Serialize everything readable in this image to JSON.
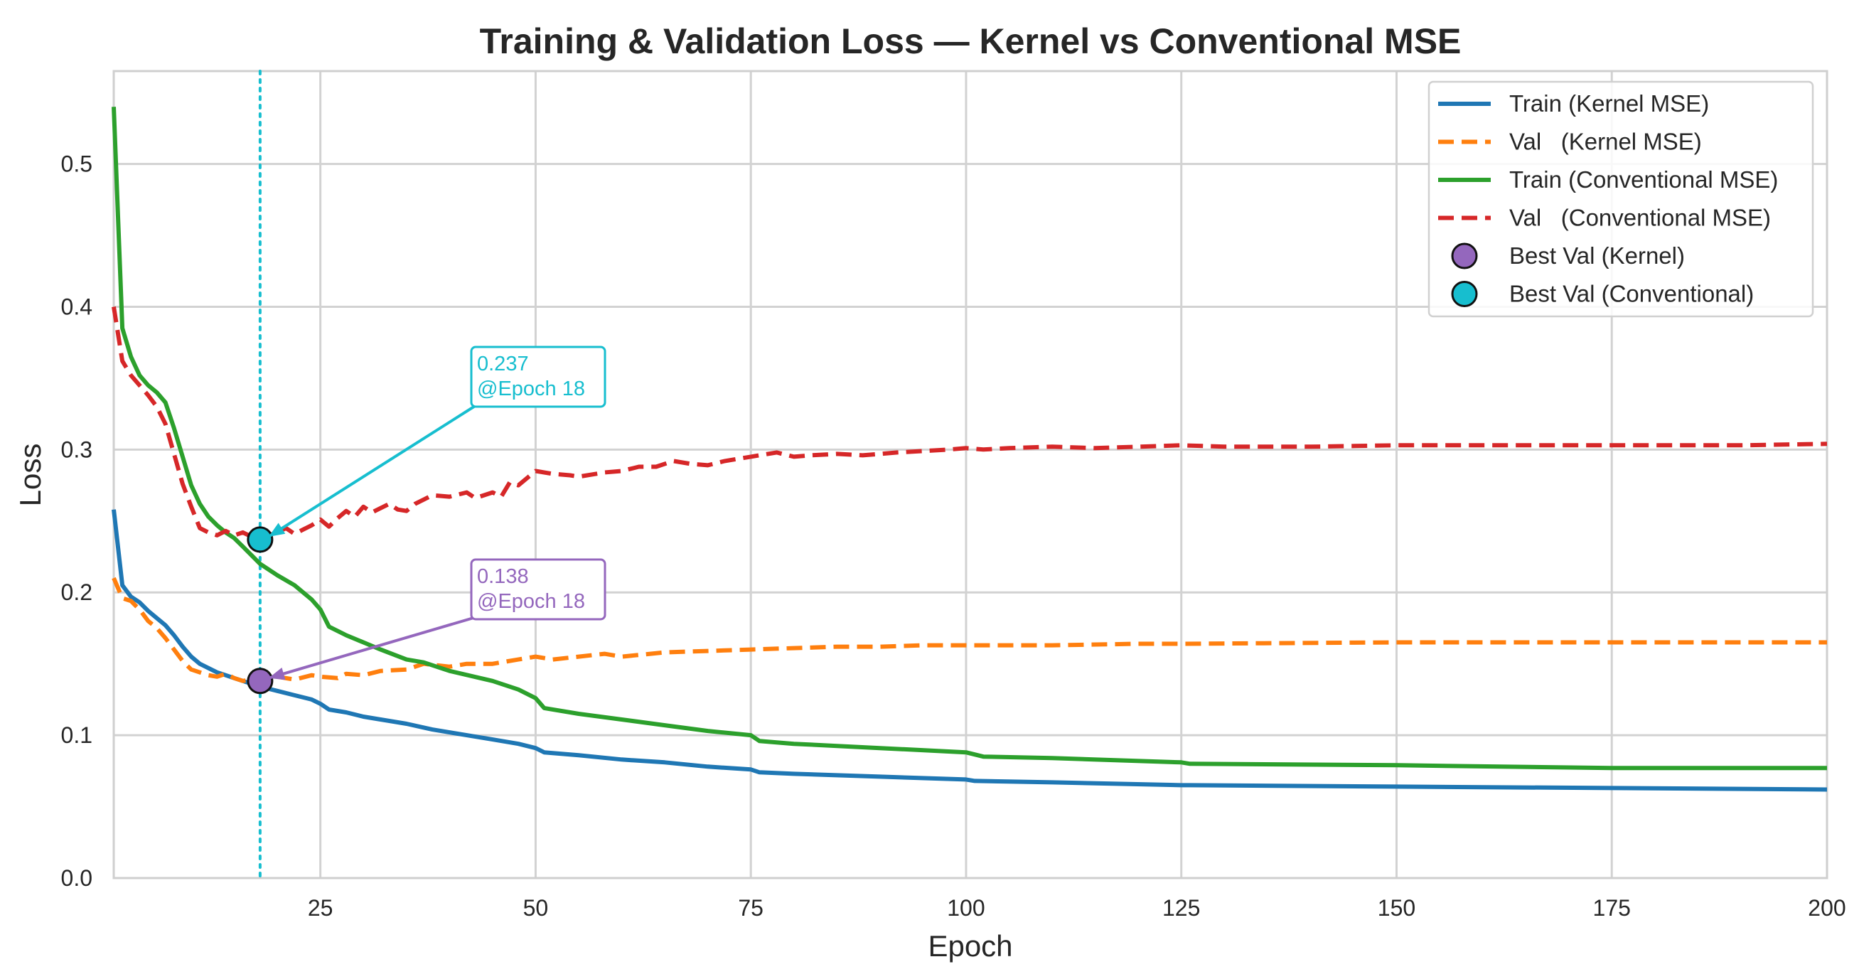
{
  "chart_data": {
    "type": "line",
    "title": "Training & Validation Loss — Kernel vs Conventional MSE",
    "xlabel": "Epoch",
    "ylabel": "Loss",
    "xlim": [
      1,
      200
    ],
    "ylim": [
      0,
      0.565
    ],
    "x_ticks": [
      25,
      50,
      75,
      100,
      125,
      150,
      175,
      200
    ],
    "y_ticks": [
      0.0,
      0.1,
      0.2,
      0.3,
      0.4,
      0.5
    ],
    "x_tick_labels": [
      "25",
      "50",
      "75",
      "100",
      "125",
      "150",
      "175",
      "200"
    ],
    "y_tick_labels": [
      "0.0",
      "0.1",
      "0.2",
      "0.3",
      "0.4",
      "0.5"
    ],
    "grid": true,
    "legend_position": "top-right",
    "series": [
      {
        "name": "Train (Kernel MSE)",
        "color": "#1f77b4",
        "style": "solid",
        "points": [
          [
            1,
            0.258
          ],
          [
            2,
            0.205
          ],
          [
            3,
            0.197
          ],
          [
            4,
            0.193
          ],
          [
            5,
            0.187
          ],
          [
            6,
            0.182
          ],
          [
            7,
            0.177
          ],
          [
            8,
            0.17
          ],
          [
            9,
            0.162
          ],
          [
            10,
            0.155
          ],
          [
            11,
            0.15
          ],
          [
            12,
            0.147
          ],
          [
            13,
            0.144
          ],
          [
            14,
            0.142
          ],
          [
            15,
            0.14
          ],
          [
            16,
            0.138
          ],
          [
            17,
            0.136
          ],
          [
            18,
            0.134
          ],
          [
            20,
            0.131
          ],
          [
            22,
            0.128
          ],
          [
            24,
            0.125
          ],
          [
            25,
            0.122
          ],
          [
            26,
            0.118
          ],
          [
            28,
            0.116
          ],
          [
            30,
            0.113
          ],
          [
            32,
            0.111
          ],
          [
            35,
            0.108
          ],
          [
            38,
            0.104
          ],
          [
            40,
            0.102
          ],
          [
            42,
            0.1
          ],
          [
            45,
            0.097
          ],
          [
            48,
            0.094
          ],
          [
            50,
            0.091
          ],
          [
            51,
            0.088
          ],
          [
            55,
            0.086
          ],
          [
            60,
            0.083
          ],
          [
            65,
            0.081
          ],
          [
            70,
            0.078
          ],
          [
            75,
            0.076
          ],
          [
            76,
            0.074
          ],
          [
            80,
            0.073
          ],
          [
            90,
            0.071
          ],
          [
            100,
            0.069
          ],
          [
            101,
            0.068
          ],
          [
            110,
            0.067
          ],
          [
            125,
            0.065
          ],
          [
            126,
            0.065
          ],
          [
            150,
            0.064
          ],
          [
            175,
            0.063
          ],
          [
            200,
            0.062
          ]
        ]
      },
      {
        "name": "Val   (Kernel MSE)",
        "color": "#ff7f0e",
        "style": "dashed",
        "points": [
          [
            1,
            0.21
          ],
          [
            2,
            0.196
          ],
          [
            3,
            0.194
          ],
          [
            4,
            0.188
          ],
          [
            5,
            0.18
          ],
          [
            6,
            0.175
          ],
          [
            7,
            0.168
          ],
          [
            8,
            0.16
          ],
          [
            9,
            0.152
          ],
          [
            10,
            0.146
          ],
          [
            11,
            0.144
          ],
          [
            12,
            0.142
          ],
          [
            13,
            0.141
          ],
          [
            14,
            0.143
          ],
          [
            15,
            0.14
          ],
          [
            16,
            0.138
          ],
          [
            17,
            0.139
          ],
          [
            18,
            0.138
          ],
          [
            19,
            0.14
          ],
          [
            20,
            0.141
          ],
          [
            22,
            0.139
          ],
          [
            24,
            0.142
          ],
          [
            25,
            0.141
          ],
          [
            27,
            0.14
          ],
          [
            28,
            0.143
          ],
          [
            30,
            0.142
          ],
          [
            32,
            0.145
          ],
          [
            35,
            0.146
          ],
          [
            37,
            0.15
          ],
          [
            40,
            0.148
          ],
          [
            42,
            0.15
          ],
          [
            45,
            0.15
          ],
          [
            48,
            0.153
          ],
          [
            50,
            0.155
          ],
          [
            52,
            0.153
          ],
          [
            55,
            0.155
          ],
          [
            58,
            0.157
          ],
          [
            60,
            0.155
          ],
          [
            65,
            0.158
          ],
          [
            70,
            0.159
          ],
          [
            75,
            0.16
          ],
          [
            80,
            0.161
          ],
          [
            85,
            0.162
          ],
          [
            90,
            0.162
          ],
          [
            95,
            0.163
          ],
          [
            100,
            0.163
          ],
          [
            110,
            0.163
          ],
          [
            120,
            0.164
          ],
          [
            125,
            0.164
          ],
          [
            150,
            0.165
          ],
          [
            175,
            0.165
          ],
          [
            200,
            0.165
          ]
        ]
      },
      {
        "name": "Train (Conventional MSE)",
        "color": "#2ca02c",
        "style": "solid",
        "points": [
          [
            1,
            0.54
          ],
          [
            2,
            0.385
          ],
          [
            3,
            0.365
          ],
          [
            4,
            0.352
          ],
          [
            5,
            0.345
          ],
          [
            6,
            0.34
          ],
          [
            7,
            0.333
          ],
          [
            8,
            0.315
          ],
          [
            9,
            0.295
          ],
          [
            10,
            0.275
          ],
          [
            11,
            0.262
          ],
          [
            12,
            0.253
          ],
          [
            13,
            0.247
          ],
          [
            14,
            0.242
          ],
          [
            15,
            0.238
          ],
          [
            16,
            0.232
          ],
          [
            17,
            0.226
          ],
          [
            18,
            0.22
          ],
          [
            20,
            0.212
          ],
          [
            22,
            0.205
          ],
          [
            24,
            0.195
          ],
          [
            25,
            0.188
          ],
          [
            26,
            0.176
          ],
          [
            28,
            0.17
          ],
          [
            30,
            0.165
          ],
          [
            32,
            0.16
          ],
          [
            35,
            0.153
          ],
          [
            37,
            0.151
          ],
          [
            40,
            0.145
          ],
          [
            45,
            0.138
          ],
          [
            48,
            0.132
          ],
          [
            50,
            0.126
          ],
          [
            51,
            0.119
          ],
          [
            55,
            0.115
          ],
          [
            60,
            0.111
          ],
          [
            65,
            0.107
          ],
          [
            70,
            0.103
          ],
          [
            75,
            0.1
          ],
          [
            76,
            0.096
          ],
          [
            80,
            0.094
          ],
          [
            90,
            0.091
          ],
          [
            100,
            0.088
          ],
          [
            102,
            0.085
          ],
          [
            110,
            0.084
          ],
          [
            125,
            0.081
          ],
          [
            126,
            0.08
          ],
          [
            150,
            0.079
          ],
          [
            175,
            0.077
          ],
          [
            200,
            0.077
          ]
        ]
      },
      {
        "name": "Val   (Conventional MSE)",
        "color": "#d62728",
        "style": "dashed",
        "points": [
          [
            1,
            0.4
          ],
          [
            2,
            0.362
          ],
          [
            3,
            0.352
          ],
          [
            4,
            0.345
          ],
          [
            5,
            0.338
          ],
          [
            6,
            0.33
          ],
          [
            7,
            0.318
          ],
          [
            8,
            0.297
          ],
          [
            9,
            0.276
          ],
          [
            10,
            0.26
          ],
          [
            11,
            0.245
          ],
          [
            12,
            0.242
          ],
          [
            13,
            0.24
          ],
          [
            14,
            0.243
          ],
          [
            15,
            0.24
          ],
          [
            16,
            0.242
          ],
          [
            17,
            0.239
          ],
          [
            18,
            0.237
          ],
          [
            19,
            0.24
          ],
          [
            20,
            0.242
          ],
          [
            21,
            0.245
          ],
          [
            22,
            0.241
          ],
          [
            23,
            0.244
          ],
          [
            24,
            0.247
          ],
          [
            25,
            0.251
          ],
          [
            26,
            0.246
          ],
          [
            27,
            0.252
          ],
          [
            28,
            0.257
          ],
          [
            29,
            0.253
          ],
          [
            30,
            0.26
          ],
          [
            31,
            0.256
          ],
          [
            32,
            0.259
          ],
          [
            33,
            0.262
          ],
          [
            34,
            0.258
          ],
          [
            35,
            0.257
          ],
          [
            36,
            0.262
          ],
          [
            37,
            0.265
          ],
          [
            38,
            0.268
          ],
          [
            40,
            0.267
          ],
          [
            42,
            0.27
          ],
          [
            43,
            0.266
          ],
          [
            45,
            0.27
          ],
          [
            46,
            0.267
          ],
          [
            47,
            0.277
          ],
          [
            48,
            0.275
          ],
          [
            50,
            0.285
          ],
          [
            52,
            0.283
          ],
          [
            54,
            0.282
          ],
          [
            55,
            0.281
          ],
          [
            58,
            0.284
          ],
          [
            60,
            0.285
          ],
          [
            62,
            0.288
          ],
          [
            64,
            0.288
          ],
          [
            66,
            0.292
          ],
          [
            68,
            0.29
          ],
          [
            70,
            0.289
          ],
          [
            72,
            0.292
          ],
          [
            75,
            0.295
          ],
          [
            78,
            0.298
          ],
          [
            80,
            0.295
          ],
          [
            82,
            0.296
          ],
          [
            85,
            0.297
          ],
          [
            88,
            0.296
          ],
          [
            90,
            0.297
          ],
          [
            92,
            0.298
          ],
          [
            95,
            0.299
          ],
          [
            98,
            0.3
          ],
          [
            100,
            0.301
          ],
          [
            102,
            0.3
          ],
          [
            105,
            0.301
          ],
          [
            110,
            0.302
          ],
          [
            115,
            0.301
          ],
          [
            120,
            0.302
          ],
          [
            125,
            0.303
          ],
          [
            130,
            0.302
          ],
          [
            140,
            0.302
          ],
          [
            150,
            0.303
          ],
          [
            160,
            0.303
          ],
          [
            170,
            0.303
          ],
          [
            180,
            0.303
          ],
          [
            190,
            0.303
          ],
          [
            200,
            0.304
          ]
        ]
      }
    ],
    "best_points": [
      {
        "name": "Best Val (Kernel)",
        "epoch": 18,
        "value": 0.138,
        "color": "#9467bd",
        "label_value": "0.138",
        "label_epoch": "@Epoch 18"
      },
      {
        "name": "Best Val (Conventional)",
        "epoch": 18,
        "value": 0.237,
        "color": "#17becf",
        "label_value": "0.237",
        "label_epoch": "@Epoch 18"
      }
    ],
    "vertical_marker_epoch": 18,
    "legend_entries": [
      "Train (Kernel MSE)",
      "Val   (Kernel MSE)",
      "Train (Conventional MSE)",
      "Val   (Conventional MSE)",
      "Best Val (Kernel)",
      "Best Val (Conventional)"
    ]
  }
}
